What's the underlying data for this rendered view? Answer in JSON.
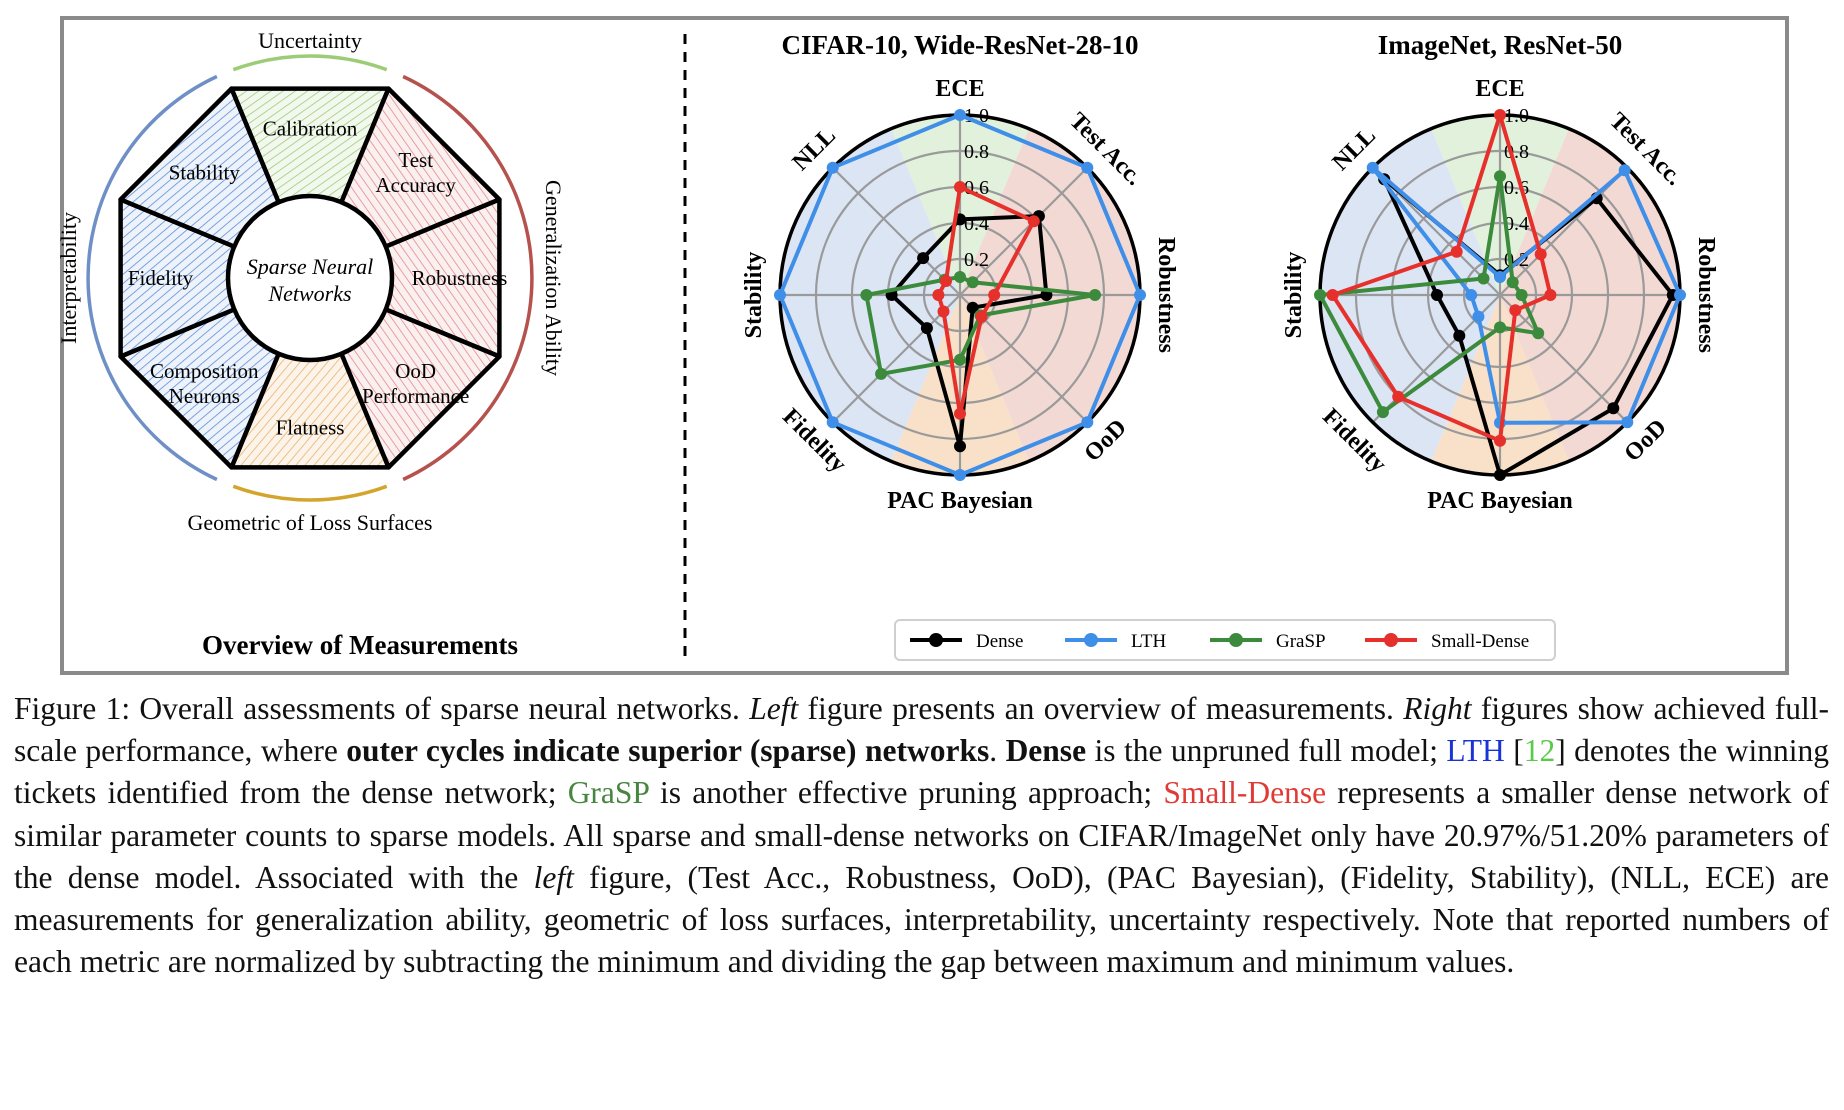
{
  "overview": {
    "title": "Overview of Measurements",
    "center": [
      "Sparse Neural",
      "Networks"
    ],
    "segments": [
      {
        "lines": [
          "Calibration"
        ],
        "fill": "#8fbc6a"
      },
      {
        "lines": [
          "Test",
          "Accuracy"
        ],
        "fill": "#e58a8a"
      },
      {
        "lines": [
          "Robustness"
        ],
        "fill": "#e58a8a"
      },
      {
        "lines": [
          "OoD",
          "Performance"
        ],
        "fill": "#e58a8a"
      },
      {
        "lines": [
          "Flatness"
        ],
        "fill": "#e8b36a"
      },
      {
        "lines": [
          "Composition",
          "Neurons"
        ],
        "fill": "#5a8fd6"
      },
      {
        "lines": [
          "Fidelity"
        ],
        "fill": "#5a8fd6"
      },
      {
        "lines": [
          "Stability"
        ],
        "fill": "#5a8fd6"
      }
    ],
    "groups": [
      {
        "label": "Uncertainty",
        "color": "#9ccc76"
      },
      {
        "label": "Generalization Ability",
        "color": "#b5524e"
      },
      {
        "label": "Geometric of Loss Surfaces",
        "color": "#d4a52c"
      },
      {
        "label": "Interpretability",
        "color": "#6f90c6"
      }
    ]
  },
  "chart_data": [
    {
      "type": "radar",
      "title": "CIFAR-10, Wide-ResNet-28-10",
      "axes": [
        "ECE",
        "Test Acc.",
        "Robustness",
        "OoD",
        "PAC Bayesian",
        "Fidelity",
        "Stability",
        "NLL"
      ],
      "rticks": [
        "0.2",
        "0.4",
        "0.6",
        "0.8",
        "1.0"
      ],
      "rlim": [
        0,
        1
      ],
      "series": [
        {
          "name": "Dense",
          "color": "#000000",
          "values": [
            0.42,
            0.62,
            0.48,
            0.1,
            0.84,
            0.26,
            0.38,
            0.29
          ]
        },
        {
          "name": "LTH",
          "color": "#3f8ee8",
          "values": [
            1.0,
            1.0,
            1.0,
            1.0,
            1.0,
            1.0,
            1.0,
            1.0
          ]
        },
        {
          "name": "GraSP",
          "color": "#3c8a3c",
          "values": [
            0.1,
            0.1,
            0.75,
            0.16,
            0.36,
            0.62,
            0.52,
            0.12
          ]
        },
        {
          "name": "Small-Dense",
          "color": "#e5302b",
          "values": [
            0.6,
            0.58,
            0.19,
            0.17,
            0.66,
            0.13,
            0.12,
            0.11
          ]
        }
      ]
    },
    {
      "type": "radar",
      "title": "ImageNet, ResNet-50",
      "axes": [
        "ECE",
        "Test Acc.",
        "Robustness",
        "OoD",
        "PAC Bayesian",
        "Fidelity",
        "Stability",
        "NLL"
      ],
      "rticks": [
        "0.2",
        "0.4",
        "0.6",
        "0.8",
        "1.0"
      ],
      "rlim": [
        0,
        1
      ],
      "series": [
        {
          "name": "Dense",
          "color": "#000000",
          "values": [
            0.11,
            0.76,
            0.96,
            0.89,
            1.0,
            0.32,
            0.35,
            0.91
          ]
        },
        {
          "name": "LTH",
          "color": "#3f8ee8",
          "values": [
            0.1,
            0.98,
            1.0,
            1.0,
            0.71,
            0.17,
            0.16,
            1.0
          ]
        },
        {
          "name": "GraSP",
          "color": "#3c8a3c",
          "values": [
            0.66,
            0.1,
            0.12,
            0.3,
            0.18,
            0.92,
            1.0,
            0.13
          ]
        },
        {
          "name": "Small-Dense",
          "color": "#e5302b",
          "values": [
            1.0,
            0.32,
            0.28,
            0.12,
            0.81,
            0.8,
            0.93,
            0.34
          ]
        }
      ]
    }
  ],
  "legend": [
    {
      "label": "Dense",
      "color": "#000000"
    },
    {
      "label": "LTH",
      "color": "#3f8ee8"
    },
    {
      "label": "GraSP",
      "color": "#3c8a3c"
    },
    {
      "label": "Small-Dense",
      "color": "#e5302b"
    }
  ],
  "radar_sector_colors": {
    "uncertainty": "#dcefd6",
    "generalization": "#f1d2cc",
    "geometric": "#f8dcc0",
    "interpretability": "#d6e0f2"
  },
  "caption": {
    "p1": {
      "label": "Figure 1:",
      "t1": " Overall assessments of sparse neural networks. ",
      "left": "Left",
      "t2": " figure presents an overview of measurements. ",
      "right": "Right",
      "t3": " figures show achieved full-scale performance, where ",
      "bold1": "outer cycles indicate superior (sparse) networks",
      "t4": ". ",
      "dense": "Dense",
      "t5": " is the unpruned full model; ",
      "lth": "LTH",
      "t6": " [",
      "ref": "12",
      "t7": "] denotes the winning tickets identified from the dense network; ",
      "grasp": "GraSP",
      "t8": " is another effective pruning approach; ",
      "small": "Small-Dense",
      "t9": " represents a smaller dense network of similar parameter counts to sparse models.  All sparse and small-dense networks on CIFAR/ImageNet only have 20.97%/51.20% parameters of the dense model. Associated with the ",
      "leftword": "left",
      "t10": " figure, (Test Acc., Robustness, OoD), (PAC Bayesian), (Fidelity, Stability), (NLL, ECE) are measurements for generalization ability, geometric of loss surfaces, interpretability, uncertainty respectively. Note that reported numbers of each metric are normalized by subtracting the minimum and dividing the gap between maximum and minimum values."
    }
  }
}
